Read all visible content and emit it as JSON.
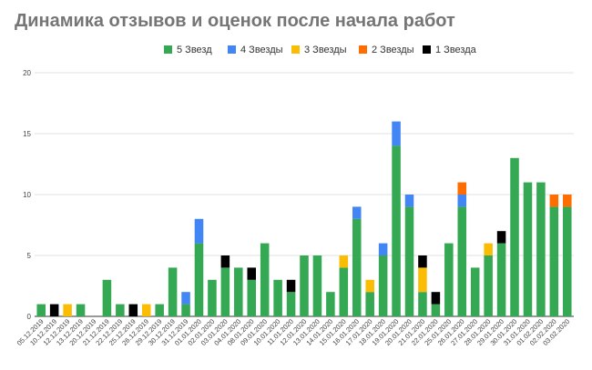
{
  "chart_data": {
    "type": "bar",
    "stacked": true,
    "title": "Динамика отзывов и оценок после начала работ",
    "xlabel": "",
    "ylabel": "",
    "ylim": [
      0,
      20
    ],
    "yticks": [
      0,
      5,
      10,
      15,
      20
    ],
    "grid": true,
    "legend_position": "top",
    "categories": [
      "05.12.2019",
      "10.12.2019",
      "12.12.2019",
      "13.12.2019",
      "20.12.2019",
      "21.12.2019",
      "22.12.2019",
      "25.12.2019",
      "26.12.2019",
      "29.12.2019",
      "30.12.2019",
      "31.12.2019",
      "01.01.2020",
      "02.01.2020",
      "03.01.2020",
      "04.01.2020",
      "08.01.2020",
      "09.01.2020",
      "10.01.2020",
      "11.01.2020",
      "12.01.2020",
      "13.01.2020",
      "14.01.2020",
      "15.01.2020",
      "16.01.2020",
      "17.01.2020",
      "18.01.2020",
      "19.01.2020",
      "20.01.2020",
      "21.01.2020",
      "22.01.2020",
      "25.01.2020",
      "26.01.2020",
      "27.01.2020",
      "28.01.2020",
      "29.01.2020",
      "30.01.2020",
      "31.01.2020",
      "01.02.2020",
      "02.02.2020",
      "03.02.2020"
    ],
    "series": [
      {
        "name": "5 Звезд",
        "color": "#34a853",
        "values": [
          1,
          0,
          0,
          1,
          0,
          3,
          1,
          0,
          0,
          1,
          4,
          1,
          6,
          3,
          4,
          4,
          3,
          6,
          3,
          2,
          5,
          5,
          2,
          4,
          8,
          2,
          5,
          14,
          9,
          2,
          1,
          6,
          9,
          4,
          5,
          6,
          13,
          11,
          11,
          9,
          9
        ]
      },
      {
        "name": "4 Звезды",
        "color": "#4285f4",
        "values": [
          0,
          0,
          0,
          0,
          0,
          0,
          0,
          0,
          0,
          0,
          0,
          1,
          2,
          0,
          0,
          0,
          0,
          0,
          0,
          0,
          0,
          0,
          0,
          0,
          1,
          0,
          1,
          2,
          1,
          0,
          0,
          0,
          1,
          0,
          0,
          0,
          0,
          0,
          0,
          0,
          0
        ]
      },
      {
        "name": "3 Звезды",
        "color": "#fbbc04",
        "values": [
          0,
          0,
          1,
          0,
          0,
          0,
          0,
          0,
          1,
          0,
          0,
          0,
          0,
          0,
          0,
          0,
          0,
          0,
          0,
          0,
          0,
          0,
          0,
          1,
          0,
          1,
          0,
          0,
          0,
          2,
          0,
          0,
          0,
          0,
          1,
          0,
          0,
          0,
          0,
          0,
          0
        ]
      },
      {
        "name": "2 Звезды",
        "color": "#ff6d01",
        "values": [
          0,
          0,
          0,
          0,
          0,
          0,
          0,
          0,
          0,
          0,
          0,
          0,
          0,
          0,
          0,
          0,
          0,
          0,
          0,
          0,
          0,
          0,
          0,
          0,
          0,
          0,
          0,
          0,
          0,
          0,
          0,
          0,
          1,
          0,
          0,
          0,
          0,
          0,
          0,
          1,
          1
        ]
      },
      {
        "name": "1 Звезда",
        "color": "#000000",
        "values": [
          0,
          1,
          0,
          0,
          0,
          0,
          0,
          1,
          0,
          0,
          0,
          0,
          0,
          0,
          1,
          0,
          1,
          0,
          0,
          1,
          0,
          0,
          0,
          0,
          0,
          0,
          0,
          0,
          0,
          1,
          1,
          0,
          0,
          0,
          0,
          1,
          0,
          0,
          0,
          0,
          0
        ]
      }
    ]
  }
}
